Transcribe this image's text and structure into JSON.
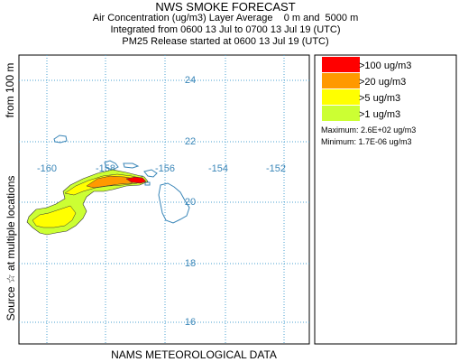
{
  "header": {
    "title": "NWS SMOKE FORECAST",
    "line1": "Air Concentration (ug/m3) Layer Average    0 m and  5000 m",
    "line2": "Integrated from 0600 13 Jul to 0700 13 Jul 19 (UTC)",
    "line3": "PM25 Release started at 0600 13 Jul 19 (UTC)"
  },
  "side_label_bottom": "Source ☆  at multiple locations",
  "side_label_top": "from   100 m",
  "footer": "NAMS METEOROLOGICAL DATA",
  "map": {
    "lat_labels": [
      "24",
      "22",
      "20",
      "18",
      "16"
    ],
    "lon_labels": [
      "-160",
      "-158",
      "-156",
      "-154",
      "-152"
    ],
    "grid_color": "#4aa0d0",
    "coast_color": "#3a86b8"
  },
  "legend": {
    "items": [
      {
        "label": ">100 ug/m3",
        "color": "#ff0000"
      },
      {
        "label": ">20 ug/m3",
        "color": "#ff9900"
      },
      {
        "label": ">5 ug/m3",
        "color": "#ffff00"
      },
      {
        "label": ">1 ug/m3",
        "color": "#ccff33"
      }
    ],
    "maximum": "Maximum: 2.6E+02 ug/m3",
    "minimum": "Minimum: 1.7E-06 ug/m3"
  }
}
